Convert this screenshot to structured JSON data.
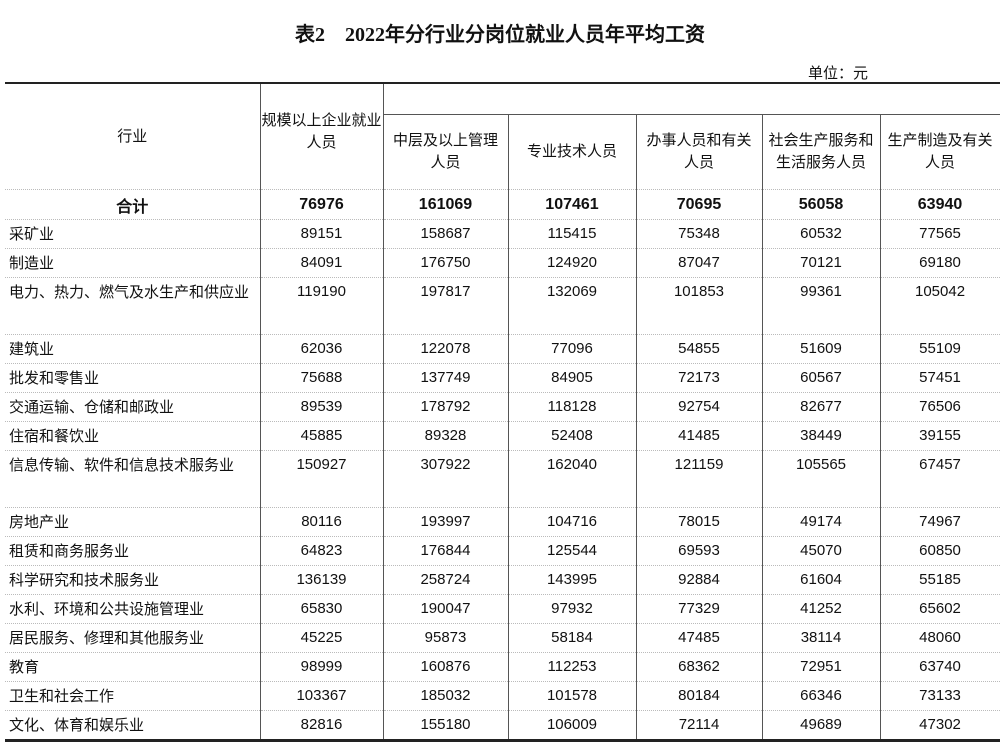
{
  "title": "表2　2022年分行业分岗位就业人员年平均工资",
  "unit": "单位：元",
  "headers": {
    "industry": "行业",
    "total": "规模以上企业就业人员",
    "cols": [
      "中层及以上管理人员",
      "专业技术人员",
      "办事人员和有关人员",
      "社会生产服务和生活服务人员",
      "生产制造及有关人员"
    ]
  },
  "rows": [
    {
      "name": "合计",
      "values": [
        "76976",
        "161069",
        "107461",
        "70695",
        "56058",
        "63940"
      ]
    },
    {
      "name": "采矿业",
      "values": [
        "89151",
        "158687",
        "115415",
        "75348",
        "60532",
        "77565"
      ]
    },
    {
      "name": "制造业",
      "values": [
        "84091",
        "176750",
        "124920",
        "87047",
        "70121",
        "69180"
      ]
    },
    {
      "name": "电力、热力、燃气及水生产和供应业",
      "values": [
        "119190",
        "197817",
        "132069",
        "101853",
        "99361",
        "105042"
      ]
    },
    {
      "name": "建筑业",
      "values": [
        "62036",
        "122078",
        "77096",
        "54855",
        "51609",
        "55109"
      ]
    },
    {
      "name": "批发和零售业",
      "values": [
        "75688",
        "137749",
        "84905",
        "72173",
        "60567",
        "57451"
      ]
    },
    {
      "name": "交通运输、仓储和邮政业",
      "values": [
        "89539",
        "178792",
        "118128",
        "92754",
        "82677",
        "76506"
      ]
    },
    {
      "name": "住宿和餐饮业",
      "values": [
        "45885",
        "89328",
        "52408",
        "41485",
        "38449",
        "39155"
      ]
    },
    {
      "name": "信息传输、软件和信息技术服务业",
      "values": [
        "150927",
        "307922",
        "162040",
        "121159",
        "105565",
        "67457"
      ]
    },
    {
      "name": "房地产业",
      "values": [
        "80116",
        "193997",
        "104716",
        "78015",
        "49174",
        "74967"
      ]
    },
    {
      "name": "租赁和商务服务业",
      "values": [
        "64823",
        "176844",
        "125544",
        "69593",
        "45070",
        "60850"
      ]
    },
    {
      "name": "科学研究和技术服务业",
      "values": [
        "136139",
        "258724",
        "143995",
        "92884",
        "61604",
        "55185"
      ]
    },
    {
      "name": "水利、环境和公共设施管理业",
      "values": [
        "65830",
        "190047",
        "97932",
        "77329",
        "41252",
        "65602"
      ]
    },
    {
      "name": "居民服务、修理和其他服务业",
      "values": [
        "45225",
        "95873",
        "58184",
        "47485",
        "38114",
        "48060"
      ]
    },
    {
      "name": "教育",
      "values": [
        "98999",
        "160876",
        "112253",
        "68362",
        "72951",
        "63740"
      ]
    },
    {
      "name": "卫生和社会工作",
      "values": [
        "103367",
        "185032",
        "101578",
        "80184",
        "66346",
        "73133"
      ]
    },
    {
      "name": "文化、体育和娱乐业",
      "values": [
        "82816",
        "155180",
        "106009",
        "72114",
        "49689",
        "47302"
      ]
    }
  ]
}
